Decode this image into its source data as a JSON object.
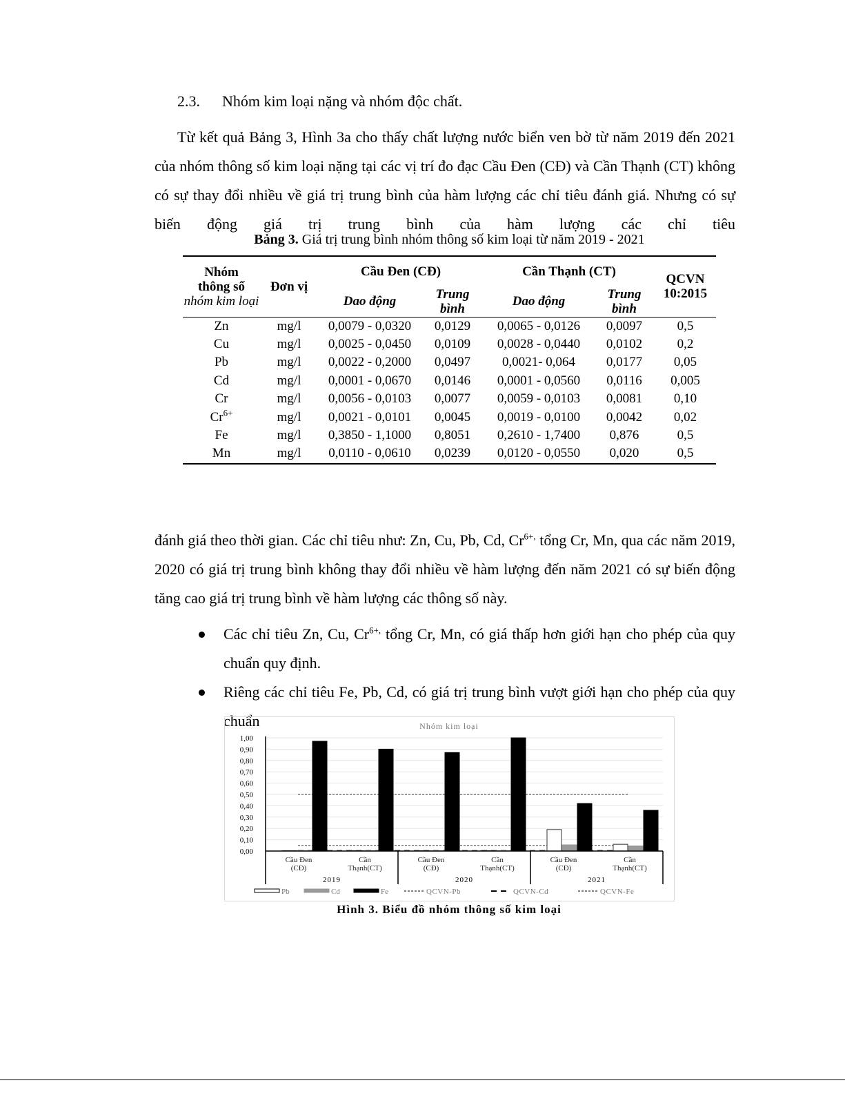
{
  "section": {
    "number": "2.3.",
    "title": "Nhóm kim loại nặng và nhóm độc chất."
  },
  "para1": "Từ kết quả Bảng 3, Hình 3a cho thấy chất lượng nước biển ven bờ từ năm 2019 đến 2021 của nhóm thông số kim loại nặng tại các vị trí đo đạc Cầu Đen (CĐ) và Cần Thạnh (CT) không có sự thay đổi nhiều về giá trị trung bình của hàm lượng các chỉ tiêu đánh giá. Nhưng có sự biến động giá trị trung bình của hàm lượng các chỉ tiêu",
  "table": {
    "caption_label": "Bảng 3.",
    "caption_text": " Giá trị trung bình nhóm thông số kim loại từ năm 2019 - 2021",
    "headers": {
      "group_bold": "Nhóm thông số",
      "group_italic": "nhóm kim loại",
      "unit": "Đơn vị",
      "site1": "Cầu Đen (CĐ)",
      "site2": "Cần Thạnh (CT)",
      "range": "Dao động",
      "mean": "Trung bình",
      "qcvn": "QCVN 10:2015"
    },
    "rows": [
      {
        "param": "Zn",
        "sup": "",
        "unit": "mg/l",
        "cd_range": "0,0079 - 0,0320",
        "cd_mean": "0,0129",
        "ct_range": "0,0065 - 0,0126",
        "ct_mean": "0,0097",
        "qcvn": "0,5"
      },
      {
        "param": "Cu",
        "sup": "",
        "unit": "mg/l",
        "cd_range": "0,0025 - 0,0450",
        "cd_mean": "0,0109",
        "ct_range": "0,0028 - 0,0440",
        "ct_mean": "0,0102",
        "qcvn": "0,2"
      },
      {
        "param": "Pb",
        "sup": "",
        "unit": "mg/l",
        "cd_range": "0,0022 - 0,2000",
        "cd_mean": "0,0497",
        "ct_range": "0,0021- 0,064",
        "ct_mean": "0,0177",
        "qcvn": "0,05"
      },
      {
        "param": "Cd",
        "sup": "",
        "unit": "mg/l",
        "cd_range": "0,0001 - 0,0670",
        "cd_mean": "0,0146",
        "ct_range": "0,0001 - 0,0560",
        "ct_mean": "0,0116",
        "qcvn": "0,005"
      },
      {
        "param": "Cr",
        "sup": "",
        "unit": "mg/l",
        "cd_range": "0,0056 - 0,0103",
        "cd_mean": "0,0077",
        "ct_range": "0,0059 - 0,0103",
        "ct_mean": "0,0081",
        "qcvn": "0,10"
      },
      {
        "param": "Cr",
        "sup": "6+",
        "unit": "mg/l",
        "cd_range": "0,0021 - 0,0101",
        "cd_mean": "0,0045",
        "ct_range": "0,0019 - 0,0100",
        "ct_mean": "0,0042",
        "qcvn": "0,02"
      },
      {
        "param": "Fe",
        "sup": "",
        "unit": "mg/l",
        "cd_range": "0,3850 - 1,1000",
        "cd_mean": "0,8051",
        "ct_range": "0,2610 - 1,7400",
        "ct_mean": "0,876",
        "qcvn": "0,5"
      },
      {
        "param": "Mn",
        "sup": "",
        "unit": "mg/l",
        "cd_range": "0,0110 - 0,0610",
        "cd_mean": "0,0239",
        "ct_range": "0,0120 - 0,0550",
        "ct_mean": "0,020",
        "qcvn": "0,5"
      }
    ]
  },
  "para2": {
    "a": "đánh giá theo thời gian. Các chỉ tiêu như: Zn, Cu, Pb, Cd, Cr",
    "sup": "6+,",
    "b": " tổng Cr, Mn, qua các năm 2019, 2020 có giá trị trung bình không thay đổi nhiều về hàm lượng đến năm 2021 có sự biến động tăng cao giá trị trung bình về hàm lượng các thông số này."
  },
  "bullets": [
    {
      "a": "Các chỉ tiêu Zn, Cu, Cr",
      "sup": "6+,",
      "b": " tổng Cr, Mn, có giá thấp hơn giới hạn cho phép của quy chuẩn quy định."
    },
    {
      "a": "Riêng các chỉ tiêu Fe, Pb, Cd, có giá trị trung bình vượt giới hạn cho phép của quy chuẩn",
      "sup": "",
      "b": ""
    }
  ],
  "chart_data": {
    "type": "bar",
    "title": "Nhóm kim loại",
    "groups": [
      "2019",
      "2020",
      "2021"
    ],
    "categories": [
      "Cầu Đen (CĐ)",
      "Cần Thạnh(CT)",
      "Cầu Đen (CĐ)",
      "Cần Thạnh(CT)",
      "Cầu Đen (CĐ)",
      "Cần Thạnh(CT)"
    ],
    "category_lines": [
      [
        "Cầu Đen",
        "(CĐ)"
      ],
      [
        "Cần",
        "Thạnh(CT)"
      ]
    ],
    "series": [
      {
        "name": "Pb",
        "color": "#ffffff",
        "values": [
          0.003,
          0.003,
          0.003,
          0.003,
          0.19,
          0.06
        ]
      },
      {
        "name": "Cd",
        "color": "#999999",
        "values": [
          0.003,
          0.003,
          0.003,
          0.003,
          0.055,
          0.045
        ]
      },
      {
        "name": "Fe",
        "color": "#000000",
        "values": [
          0.97,
          0.9,
          0.87,
          1.0,
          0.42,
          0.36
        ]
      }
    ],
    "reference_lines": [
      {
        "name": "QCVN-Pb",
        "value": 0.05
      },
      {
        "name": "QCVN-Cd",
        "value": 0.005
      },
      {
        "name": "QCVN-Fe",
        "value": 0.5
      }
    ],
    "yticks": [
      "0,00",
      "0,10",
      "0,20",
      "0,30",
      "0,40",
      "0,50",
      "0,60",
      "0,70",
      "0,80",
      "0,90",
      "1,00"
    ],
    "ylim": [
      0,
      1.0
    ],
    "grid": true,
    "legend": "bottom",
    "caption_label": "Hình 3.",
    "caption_text": " Biểu đồ nhóm thông số kim loại"
  }
}
